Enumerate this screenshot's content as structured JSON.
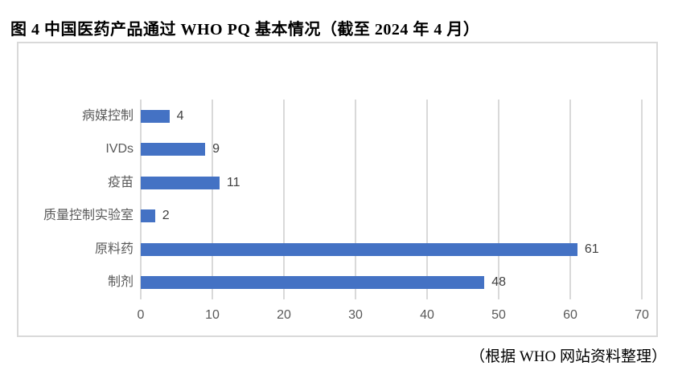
{
  "title": "图 4 中国医药产品通过 WHO PQ 基本情况（截至 2024 年 4 月）",
  "source_note": "（根据 WHO 网站资料整理）",
  "chart_data": {
    "type": "bar",
    "orientation": "horizontal",
    "title": "",
    "xlabel": "",
    "ylabel": "",
    "categories": [
      "病媒控制",
      "IVDs",
      "疫苗",
      "质量控制实验室",
      "原料药",
      "制剂"
    ],
    "values": [
      4,
      9,
      11,
      2,
      61,
      48
    ],
    "data_labels": [
      "4",
      "9",
      "11",
      "2",
      "61",
      "48"
    ],
    "xlim": [
      0,
      70
    ],
    "xticks": [
      0,
      10,
      20,
      30,
      40,
      50,
      60,
      70
    ],
    "grid": "vertical",
    "legend_position": "none",
    "bar_color": "#4472c4",
    "gridline_color": "#d9d9d9",
    "frame_border_color": "#d9d9d9",
    "category_label_color": "#595959",
    "tick_label_color": "#595959",
    "value_label_color": "#404040",
    "title_color": "#000000"
  }
}
